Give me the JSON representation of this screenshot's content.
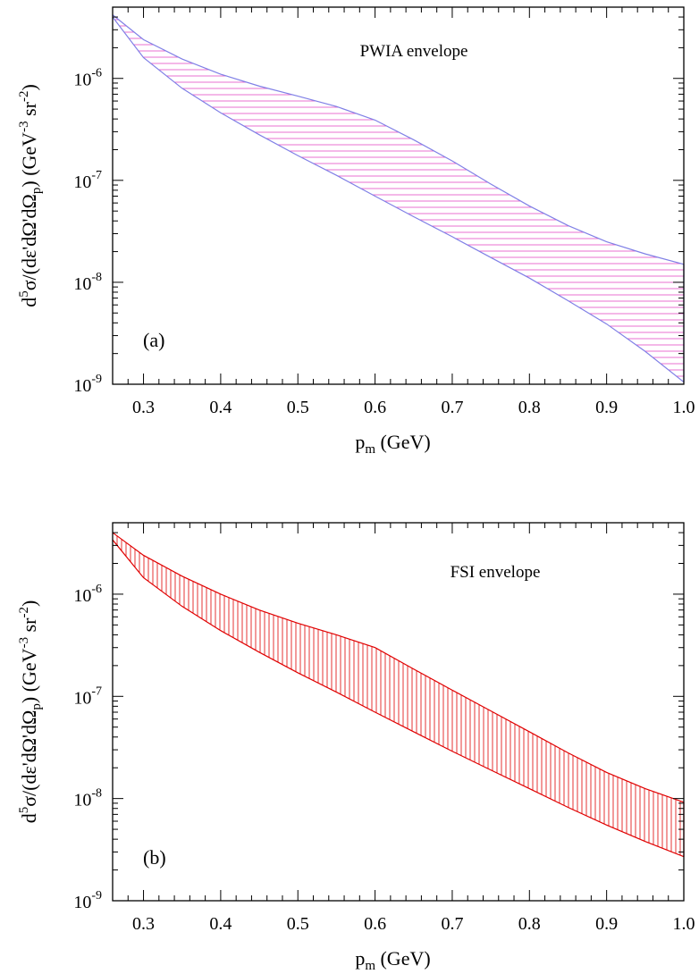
{
  "chart_data": [
    {
      "type": "area",
      "panel": "(a)",
      "annotation": "PWIA envelope",
      "xlabel_main": "p",
      "xlabel_sub": "m",
      "xlabel_unit": " (GeV)",
      "ylabel_parts": [
        "d",
        "5",
        "σ/(dε'dΩ'dΩ",
        "p",
        ") (GeV",
        "-3",
        " sr",
        "-2",
        ")"
      ],
      "xlim": [
        0.26,
        1.0
      ],
      "ylim": [
        1e-09,
        5e-06
      ],
      "yscale": "log",
      "x_ticks": [
        "0.3",
        "0.4",
        "0.5",
        "0.6",
        "0.7",
        "0.8",
        "0.9",
        "1.0"
      ],
      "y_ticks": [
        {
          "base": "10",
          "exp": "-6"
        },
        {
          "base": "10",
          "exp": "-7"
        },
        {
          "base": "10",
          "exp": "-8"
        },
        {
          "base": "10",
          "exp": "-9"
        }
      ],
      "hatch": "horizontal",
      "color": "#8080e6",
      "hatch_color": "#e040c0",
      "series": [
        {
          "label": "upper",
          "x": [
            0.26,
            0.3,
            0.35,
            0.4,
            0.45,
            0.5,
            0.55,
            0.6,
            0.65,
            0.7,
            0.75,
            0.8,
            0.85,
            0.9,
            0.95,
            1.0
          ],
          "values": [
            4.2e-06,
            2.4e-06,
            1.55e-06,
            1.1e-06,
            8.4e-07,
            6.7e-07,
            5.3e-07,
            3.9e-07,
            2.5e-07,
            1.55e-07,
            9.2e-08,
            5.6e-08,
            3.6e-08,
            2.5e-08,
            1.9e-08,
            1.5e-08
          ]
        },
        {
          "label": "lower",
          "x": [
            0.26,
            0.3,
            0.35,
            0.4,
            0.45,
            0.5,
            0.55,
            0.6,
            0.65,
            0.7,
            0.75,
            0.8,
            0.85,
            0.9,
            0.95,
            1.0
          ],
          "values": [
            4e-06,
            1.6e-06,
            8e-07,
            4.6e-07,
            2.8e-07,
            1.75e-07,
            1.12e-07,
            7e-08,
            4.4e-08,
            2.8e-08,
            1.75e-08,
            1.1e-08,
            6.6e-09,
            3.9e-09,
            2.1e-09,
            1.05e-09
          ]
        }
      ]
    },
    {
      "type": "area",
      "panel": "(b)",
      "annotation": "FSI envelope",
      "xlabel_main": "p",
      "xlabel_sub": "m",
      "xlabel_unit": " (GeV)",
      "ylabel_parts": [
        "d",
        "5",
        "σ/(dε'dΩ'dΩ",
        "p",
        ") (GeV",
        "-3",
        " sr",
        "-2",
        ")"
      ],
      "xlim": [
        0.26,
        1.0
      ],
      "ylim": [
        1e-09,
        5e-06
      ],
      "yscale": "log",
      "x_ticks": [
        "0.3",
        "0.4",
        "0.5",
        "0.6",
        "0.7",
        "0.8",
        "0.9",
        "1.0"
      ],
      "y_ticks": [
        {
          "base": "10",
          "exp": "-6"
        },
        {
          "base": "10",
          "exp": "-7"
        },
        {
          "base": "10",
          "exp": "-8"
        },
        {
          "base": "10",
          "exp": "-9"
        }
      ],
      "hatch": "vertical",
      "color": "#e00000",
      "hatch_color": "#e00000",
      "series": [
        {
          "label": "upper",
          "x": [
            0.26,
            0.3,
            0.35,
            0.4,
            0.45,
            0.5,
            0.55,
            0.6,
            0.65,
            0.7,
            0.75,
            0.8,
            0.85,
            0.9,
            0.95,
            1.0
          ],
          "values": [
            4e-06,
            2.4e-06,
            1.5e-06,
            1e-06,
            7e-07,
            5.2e-07,
            4e-07,
            3e-07,
            1.85e-07,
            1.15e-07,
            7.2e-08,
            4.5e-08,
            2.8e-08,
            1.8e-08,
            1.25e-08,
            9.2e-09
          ]
        },
        {
          "label": "lower",
          "x": [
            0.26,
            0.3,
            0.35,
            0.4,
            0.45,
            0.5,
            0.55,
            0.6,
            0.65,
            0.7,
            0.75,
            0.8,
            0.85,
            0.9,
            0.95,
            1.0
          ],
          "values": [
            3.4e-06,
            1.45e-06,
            7.6e-07,
            4.4e-07,
            2.7e-07,
            1.7e-07,
            1.1e-07,
            7e-08,
            4.5e-08,
            2.9e-08,
            1.9e-08,
            1.25e-08,
            8.2e-09,
            5.5e-09,
            3.8e-09,
            2.7e-09
          ]
        }
      ]
    }
  ]
}
